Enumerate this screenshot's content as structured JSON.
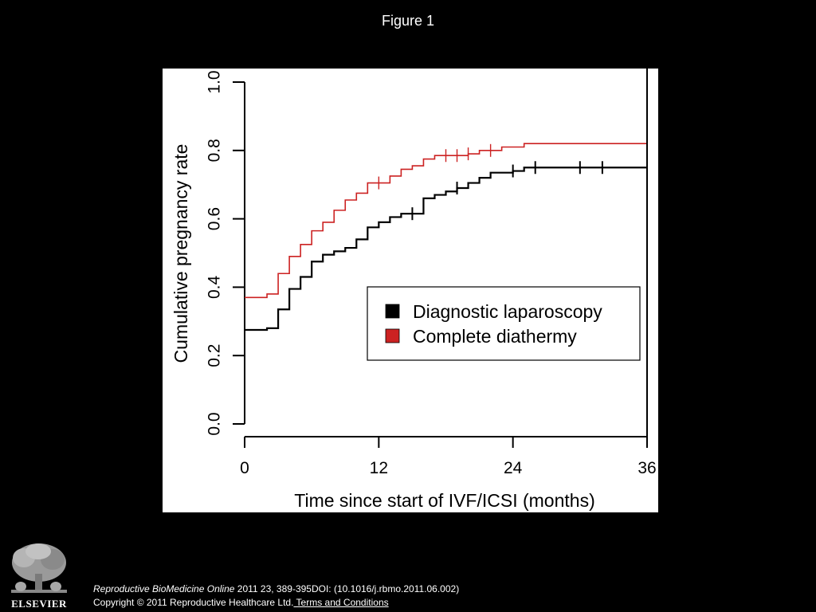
{
  "slide": {
    "title": "Figure 1"
  },
  "footer": {
    "publisher": "ELSEVIER",
    "journal": "Reproductive BioMedicine Online",
    "citation_rest": " 2011 23, 389-395DOI: (10.1016/j.rbmo.2011.06.002)",
    "copyright": "Copyright © 2011 Reproductive Healthcare Ltd.",
    "terms_link": " Terms and Conditions"
  },
  "chart_data": {
    "type": "line",
    "step": true,
    "title": "",
    "xlabel": "Time since start of IVF/ICSI (months)",
    "ylabel": "Cumulative pregnancy rate",
    "xlim": [
      0,
      36
    ],
    "ylim": [
      0,
      1.0
    ],
    "x_ticks": [
      "0",
      "12",
      "24",
      "36"
    ],
    "y_ticks": [
      "0.0",
      "0.2",
      "0.4",
      "0.6",
      "0.8",
      "1.0"
    ],
    "grid": false,
    "legend_position": "center-right",
    "series": [
      {
        "name": "Diagnostic laparoscopy",
        "color": "#000000",
        "steps": [
          [
            0,
            0.275
          ],
          [
            2,
            0.28
          ],
          [
            3,
            0.335
          ],
          [
            4,
            0.395
          ],
          [
            5,
            0.43
          ],
          [
            6,
            0.475
          ],
          [
            7,
            0.495
          ],
          [
            8,
            0.505
          ],
          [
            9,
            0.515
          ],
          [
            10,
            0.54
          ],
          [
            11,
            0.575
          ],
          [
            12,
            0.59
          ],
          [
            13,
            0.605
          ],
          [
            14,
            0.615
          ],
          [
            16,
            0.66
          ],
          [
            17,
            0.67
          ],
          [
            18,
            0.68
          ],
          [
            19,
            0.69
          ],
          [
            20,
            0.705
          ],
          [
            21,
            0.72
          ],
          [
            22,
            0.735
          ],
          [
            24,
            0.74
          ],
          [
            25,
            0.75
          ],
          [
            36,
            0.75
          ]
        ],
        "censored": [
          15,
          19,
          24,
          26,
          30,
          32
        ]
      },
      {
        "name": "Complete diathermy",
        "color": "#cc2222",
        "steps": [
          [
            0,
            0.37
          ],
          [
            2,
            0.38
          ],
          [
            3,
            0.44
          ],
          [
            4,
            0.49
          ],
          [
            5,
            0.525
          ],
          [
            6,
            0.565
          ],
          [
            7,
            0.59
          ],
          [
            8,
            0.625
          ],
          [
            9,
            0.655
          ],
          [
            10,
            0.675
          ],
          [
            11,
            0.705
          ],
          [
            13,
            0.725
          ],
          [
            14,
            0.745
          ],
          [
            15,
            0.755
          ],
          [
            16,
            0.775
          ],
          [
            17,
            0.785
          ],
          [
            20,
            0.79
          ],
          [
            21,
            0.8
          ],
          [
            23,
            0.81
          ],
          [
            25,
            0.82
          ],
          [
            36,
            0.82
          ]
        ],
        "censored": [
          12,
          18,
          19,
          20,
          22
        ]
      }
    ]
  }
}
